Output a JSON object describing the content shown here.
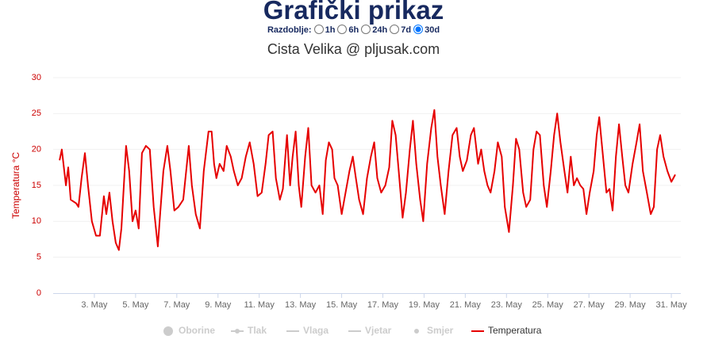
{
  "chart_data": {
    "type": "line",
    "title": "Grafički prikaz",
    "period_label": "Razdoblje:",
    "periods": [
      "1h",
      "6h",
      "24h",
      "7d",
      "30d"
    ],
    "selected_period": "30d",
    "subtitle": "Cista Velika @ pljusak.com",
    "y_label": "Temperatura °C",
    "axis_color": "#cc0000",
    "grid": true,
    "legend_hidden": [
      "Oborine",
      "Tlak",
      "Vlaga",
      "Vjetar",
      "Smjer"
    ],
    "hidden_color": "#cccccc",
    "xlim": [
      1,
      31.46
    ],
    "xticks": [
      {
        "value": 3,
        "label": "3. May"
      },
      {
        "value": 5,
        "label": "5. May"
      },
      {
        "value": 7,
        "label": "7. May"
      },
      {
        "value": 9,
        "label": "9. May"
      },
      {
        "value": 11,
        "label": "11. May"
      },
      {
        "value": 13,
        "label": "13. May"
      },
      {
        "value": 15,
        "label": "15. May"
      },
      {
        "value": 17,
        "label": "17. May"
      },
      {
        "value": 19,
        "label": "19. May"
      },
      {
        "value": 21,
        "label": "21. May"
      },
      {
        "value": 23,
        "label": "23. May"
      },
      {
        "value": 25,
        "label": "25. May"
      },
      {
        "value": 27,
        "label": "27. May"
      },
      {
        "value": 29,
        "label": "29. May"
      },
      {
        "value": 31,
        "label": "31. May"
      }
    ],
    "ylim": [
      0,
      30
    ],
    "yticks": [
      0,
      5,
      10,
      15,
      20,
      25,
      30
    ],
    "x": [
      1.31,
      1.42,
      1.62,
      1.73,
      1.85,
      2.12,
      2.23,
      2.38,
      2.54,
      2.69,
      2.88,
      3.08,
      3.27,
      3.46,
      3.58,
      3.73,
      3.88,
      4.04,
      4.19,
      4.31,
      4.54,
      4.69,
      4.85,
      5.0,
      5.15,
      5.31,
      5.5,
      5.69,
      5.88,
      6.08,
      6.19,
      6.35,
      6.54,
      6.69,
      6.88,
      7.08,
      7.31,
      7.58,
      7.73,
      7.92,
      8.12,
      8.31,
      8.54,
      8.69,
      8.81,
      8.92,
      9.08,
      9.27,
      9.42,
      9.62,
      9.77,
      9.96,
      10.15,
      10.35,
      10.54,
      10.73,
      10.92,
      11.12,
      11.31,
      11.46,
      11.65,
      11.81,
      12.0,
      12.15,
      12.35,
      12.5,
      12.62,
      12.77,
      12.92,
      13.04,
      13.23,
      13.38,
      13.54,
      13.73,
      13.92,
      14.08,
      14.23,
      14.38,
      14.54,
      14.65,
      14.81,
      15.0,
      15.19,
      15.38,
      15.54,
      15.69,
      15.85,
      16.04,
      16.23,
      16.42,
      16.58,
      16.73,
      16.92,
      17.12,
      17.31,
      17.46,
      17.62,
      17.77,
      17.96,
      18.12,
      18.31,
      18.46,
      18.62,
      18.81,
      18.96,
      19.15,
      19.35,
      19.5,
      19.65,
      19.81,
      20.0,
      20.19,
      20.38,
      20.58,
      20.73,
      20.88,
      21.08,
      21.27,
      21.42,
      21.62,
      21.77,
      21.92,
      22.08,
      22.23,
      22.42,
      22.58,
      22.77,
      22.92,
      23.12,
      23.31,
      23.46,
      23.62,
      23.81,
      23.96,
      24.15,
      24.31,
      24.46,
      24.62,
      24.81,
      24.96,
      25.15,
      25.31,
      25.46,
      25.62,
      25.81,
      25.96,
      26.12,
      26.27,
      26.42,
      26.58,
      26.73,
      26.88,
      27.04,
      27.23,
      27.38,
      27.5,
      27.65,
      27.85,
      28.0,
      28.15,
      28.31,
      28.46,
      28.62,
      28.77,
      28.92,
      29.12,
      29.31,
      29.46,
      29.62,
      29.81,
      30.0,
      30.15,
      30.31,
      30.46,
      30.62,
      30.81,
      31.0,
      31.19
    ],
    "series": [
      {
        "name": "Temperatura",
        "color": "#e60000",
        "values": [
          18.5,
          20,
          15,
          17.5,
          13,
          12.5,
          12,
          16,
          19.5,
          15,
          10,
          8,
          8,
          13.5,
          11,
          14,
          10,
          7,
          6,
          9,
          20.5,
          17,
          10,
          11.5,
          9,
          19.5,
          20.5,
          20,
          12,
          6.5,
          11,
          17,
          20.5,
          17,
          11.5,
          12,
          13,
          20.5,
          15,
          11,
          9,
          17,
          22.5,
          22.5,
          18,
          16,
          18,
          17,
          20.5,
          19,
          17,
          15,
          16,
          19,
          21,
          18,
          13.5,
          14,
          18,
          22,
          22.5,
          16,
          13,
          14.5,
          22,
          15,
          19,
          22.5,
          15,
          12,
          19,
          23,
          15,
          14,
          15,
          11,
          18.5,
          21,
          20,
          16,
          15,
          11,
          14,
          17,
          19,
          16,
          13,
          11,
          16,
          19,
          21,
          16,
          14,
          15,
          17.5,
          24,
          22,
          17,
          10.5,
          14,
          20,
          24,
          18,
          13,
          10,
          18,
          23,
          25.5,
          19,
          15,
          11,
          17,
          22,
          23,
          19,
          17,
          18.5,
          22,
          23,
          18,
          20,
          17,
          15,
          14,
          17,
          21,
          19,
          12,
          8.5,
          15,
          21.5,
          20,
          14,
          12,
          13,
          20,
          22.5,
          22,
          15,
          12,
          17,
          22,
          25,
          21,
          17,
          14,
          19,
          15,
          16,
          15,
          14.5,
          11,
          14,
          17,
          22,
          24.5,
          20,
          14,
          14.5,
          11.5,
          19,
          23.5,
          19,
          15,
          14,
          18,
          21,
          23.5,
          17,
          14,
          11,
          12,
          20,
          22,
          19,
          17,
          15.5,
          16.5
        ]
      }
    ]
  }
}
